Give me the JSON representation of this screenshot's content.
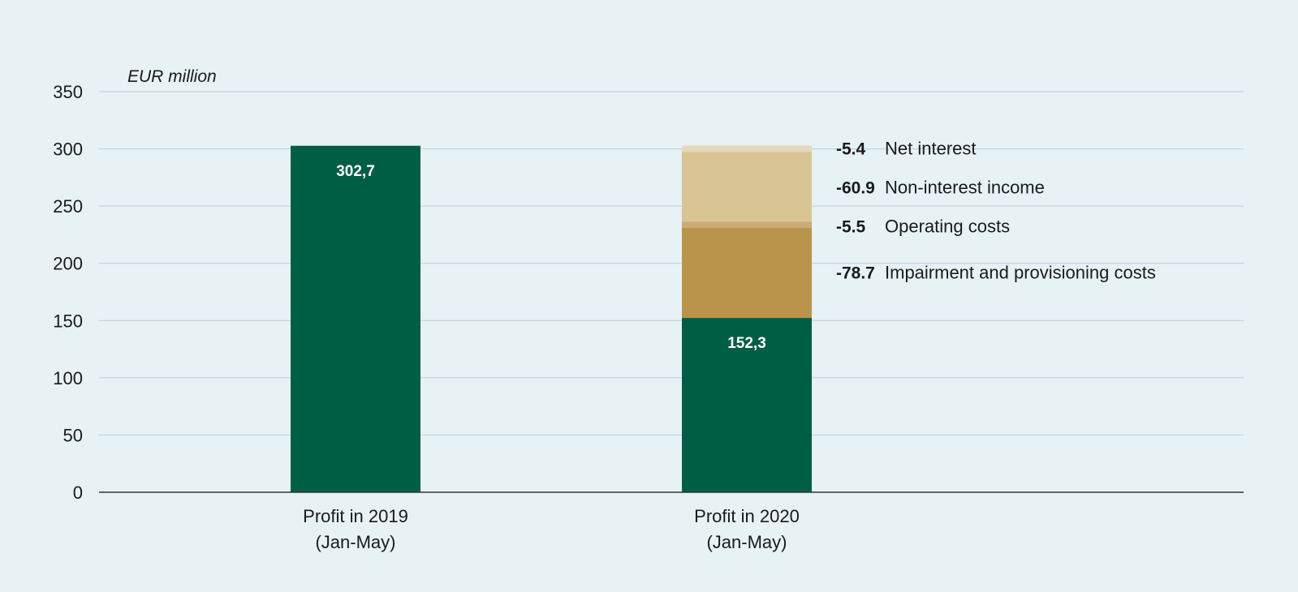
{
  "chart_data": {
    "type": "bar",
    "unit_label": "EUR million",
    "ylim": [
      0,
      350
    ],
    "y_ticks": [
      0,
      50,
      100,
      150,
      200,
      250,
      300,
      350
    ],
    "grid": true,
    "categories": [
      {
        "line1": "Profit in 2019",
        "line2": "(Jan-May)"
      },
      {
        "line1": "Profit in 2020",
        "line2": "(Jan-May)"
      }
    ],
    "profit_bars": [
      {
        "value": 302.7,
        "label": "302,7"
      },
      {
        "value": 152.3,
        "label": "152,3"
      }
    ],
    "components_2020": [
      {
        "name": "Impairment and provisioning costs",
        "value": -78.7,
        "value_label": "-78.7",
        "color": "#b9944a"
      },
      {
        "name": "Operating costs",
        "value": -5.5,
        "value_label": "-5.5",
        "color": "#c9ab74"
      },
      {
        "name": "Non-interest income",
        "value": -60.9,
        "value_label": "-60.9",
        "color": "#d9c494"
      },
      {
        "name": "Net interest",
        "value": -5.4,
        "value_label": "-5.4",
        "color": "#e6d8b8"
      }
    ],
    "colors": {
      "profit": "#005e45",
      "gridline": "#b8cfd4",
      "axis": "#333333",
      "background": "#e7f2f5"
    }
  }
}
